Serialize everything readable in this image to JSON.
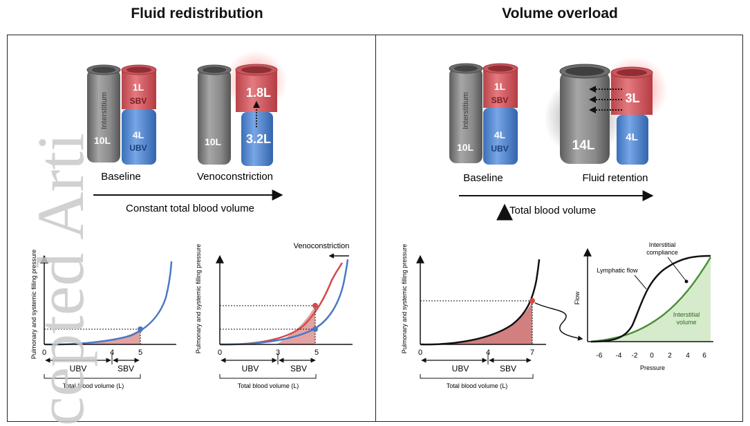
{
  "titles": {
    "left": "Fluid redistribution",
    "right": "Volume overload"
  },
  "watermark": "cepted Arti",
  "colors": {
    "red": "#d9545a",
    "blue": "#4a86d4",
    "gray": "#8a8a8a",
    "fill_red": "#e3a3a3",
    "fill_green": "#d6ebcb",
    "curve_blue": "#4a78c4",
    "curve_red": "#d24a4a",
    "curve_green": "#4c8f3a"
  },
  "left_panel": {
    "baseline": {
      "interstitium_label": "Interstitium",
      "interstitium_volume": "10L",
      "sbv_volume": "1L",
      "sbv_label": "SBV",
      "ubv_volume": "4L",
      "ubv_label": "UBV",
      "caption": "Baseline"
    },
    "veno": {
      "interstitium_volume": "10L",
      "sbv_volume": "1.8L",
      "ubv_volume": "3.2L",
      "caption": "Venoconstriction"
    },
    "arrow_caption": "Constant total blood volume",
    "chart1": {
      "ylabel": "Pulmonary and systemic filling pressure",
      "xlabel": "Total blood volume (L)",
      "ticks": [
        "0",
        "4",
        "5"
      ],
      "ranges": [
        "UBV",
        "SBV"
      ]
    },
    "chart2": {
      "ylabel": "Pulmonary and systemic filling pressure",
      "xlabel": "Total blood volume (L)",
      "ticks": [
        "0",
        "3",
        "5"
      ],
      "ranges": [
        "UBV",
        "SBV"
      ],
      "shift_label": "Venoconstriction"
    }
  },
  "right_panel": {
    "baseline": {
      "interstitium_label": "Interstitium",
      "interstitium_volume": "10L",
      "sbv_volume": "1L",
      "sbv_label": "SBV",
      "ubv_volume": "4L",
      "ubv_label": "UBV",
      "caption": "Baseline"
    },
    "retention": {
      "interstitium_volume": "14L",
      "sbv_volume": "3L",
      "ubv_volume": "4L",
      "caption": "Fluid retention"
    },
    "arrow_caption": "Total blood volume",
    "chart3": {
      "ylabel": "Pulmonary and systemic filling pressure",
      "xlabel": "Total blood volume (L)",
      "ticks": [
        "0",
        "4",
        "7"
      ],
      "ranges": [
        "UBV",
        "SBV"
      ]
    },
    "chart4": {
      "ylabel": "Flow",
      "xlabel": "Pressure",
      "ticks": [
        "-6",
        "-4",
        "-2",
        "0",
        "2",
        "4",
        "6"
      ],
      "lymphatic_label": "Lymphatic flow",
      "compliance_label_1": "Interstitial",
      "compliance_label_2": "compliance",
      "volume_label_1": "Interstitial",
      "volume_label_2": "volume"
    }
  }
}
